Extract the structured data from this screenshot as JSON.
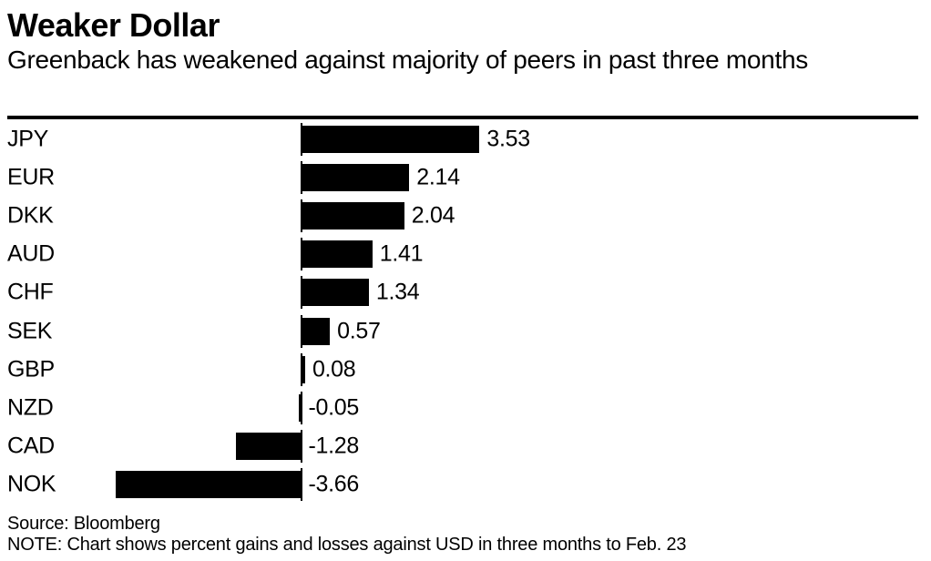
{
  "header": {
    "title": "Weaker Dollar",
    "subtitle": "Greenback has weakened against majority of peers in past three months"
  },
  "chart_data": {
    "type": "bar",
    "orientation": "horizontal",
    "title": "Weaker Dollar",
    "subtitle": "Greenback has weakened against majority of peers in past three months",
    "categories": [
      "JPY",
      "EUR",
      "DKK",
      "AUD",
      "CHF",
      "SEK",
      "GBP",
      "NZD",
      "CAD",
      "NOK"
    ],
    "values": [
      3.53,
      2.14,
      2.04,
      1.41,
      1.34,
      0.57,
      0.08,
      -0.05,
      -1.28,
      -3.66
    ],
    "value_labels": [
      "3.53",
      "2.14",
      "2.04",
      "1.41",
      "1.34",
      "0.57",
      "0.08",
      "-0.05",
      "-1.28",
      "-3.66"
    ],
    "baseline": 0,
    "bar_color": "#000000",
    "text_color": "#000000",
    "background": "#ffffff",
    "grid": false,
    "legend": false,
    "axis_ticks_visible": false
  },
  "footer": {
    "source": "Source: Bloomberg",
    "note": "NOTE: Chart shows percent gains and losses against USD in three months to Feb. 23"
  }
}
